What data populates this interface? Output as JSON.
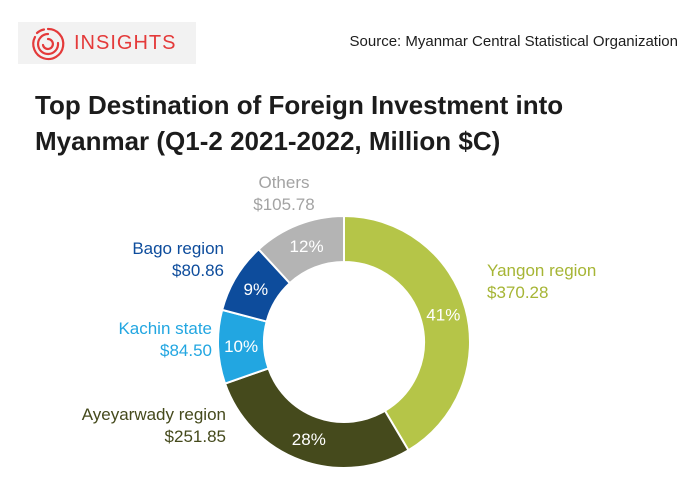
{
  "header": {
    "brand": "INSIGHTS",
    "logo_icon": "insights-spiral-logo",
    "source": "Source: Myanmar Central Statistical Organization"
  },
  "colors": {
    "accent": "#e43a3a",
    "yangon": "#b5c548",
    "ayeyarwady": "#454a1c",
    "kachin": "#22a6e1",
    "bago": "#0d4c9c",
    "others": "#b4b4b4"
  },
  "chart_data": {
    "type": "pie",
    "variant": "donut",
    "title": "Top Destination of Foreign Investment into Myanmar (Q1-2 2021-2022, Million $C)",
    "unit": "Million $C",
    "categories": [
      "Yangon region",
      "Ayeyarwady region",
      "Kachin state",
      "Bago region",
      "Others"
    ],
    "values": [
      370.28,
      251.85,
      84.5,
      80.86,
      105.78
    ],
    "value_labels": [
      "$370.28",
      "$251.85",
      "$84.50",
      "$80.86",
      "$105.78"
    ],
    "percent_labels": [
      "41%",
      "28%",
      "10%",
      "9%",
      "12%"
    ],
    "colors": [
      "#b5c548",
      "#454a1c",
      "#22a6e1",
      "#0d4c9c",
      "#b4b4b4"
    ],
    "label_colors": [
      "#a6b535",
      "#454a1c",
      "#22a6e1",
      "#0d4c9c",
      "#a3a3a3"
    ],
    "legend": "none"
  }
}
